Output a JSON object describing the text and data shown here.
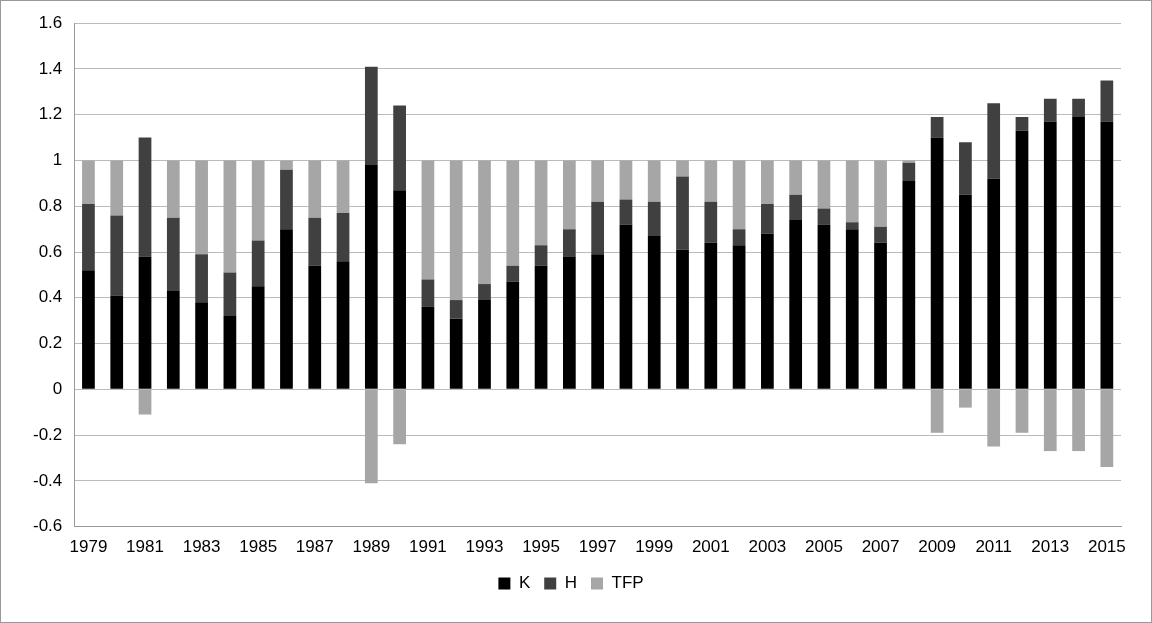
{
  "chart_data": {
    "type": "bar",
    "stacked": true,
    "categories": [
      "1979",
      null,
      "1981",
      null,
      "1983",
      null,
      "1985",
      null,
      "1987",
      null,
      "1989",
      null,
      "1991",
      null,
      "1993",
      null,
      "1995",
      null,
      "1997",
      null,
      "1999",
      null,
      "2001",
      null,
      "2003",
      null,
      "2005",
      null,
      "2007",
      null,
      "2009",
      null,
      "2011",
      null,
      "2013",
      null,
      "2015"
    ],
    "series": [
      {
        "name": "K",
        "color": "#000000",
        "values": [
          0.52,
          0.41,
          0.58,
          0.43,
          0.38,
          0.32,
          0.45,
          0.7,
          0.54,
          0.56,
          0.98,
          0.87,
          0.36,
          0.31,
          0.39,
          0.47,
          0.54,
          0.58,
          0.59,
          0.72,
          0.67,
          0.61,
          0.64,
          0.63,
          0.68,
          0.74,
          0.72,
          0.7,
          0.64,
          0.91,
          1.1,
          0.85,
          0.92,
          1.13,
          1.17,
          1.19,
          1.17
        ]
      },
      {
        "name": "H",
        "color": "#404040",
        "values": [
          0.29,
          0.35,
          0.52,
          0.32,
          0.21,
          0.19,
          0.2,
          0.26,
          0.21,
          0.21,
          0.43,
          0.37,
          0.12,
          0.08,
          0.07,
          0.07,
          0.09,
          0.12,
          0.23,
          0.11,
          0.15,
          0.32,
          0.18,
          0.07,
          0.13,
          0.11,
          0.07,
          0.03,
          0.07,
          0.08,
          0.09,
          0.23,
          0.33,
          0.06,
          0.1,
          0.08,
          0.18
        ]
      },
      {
        "name": "TFP",
        "color": "#a6a6a6",
        "values": [
          0.19,
          0.24,
          -0.11,
          0.25,
          0.41,
          0.49,
          0.35,
          0.04,
          0.25,
          0.23,
          -0.41,
          -0.24,
          0.52,
          0.61,
          0.54,
          0.46,
          0.37,
          0.3,
          0.18,
          0.17,
          0.18,
          0.07,
          0.18,
          0.3,
          0.19,
          0.15,
          0.21,
          0.27,
          0.29,
          0.01,
          -0.19,
          -0.08,
          -0.25,
          -0.19,
          -0.27,
          -0.27,
          -0.34
        ]
      }
    ],
    "ylim": [
      -0.6,
      1.6
    ],
    "yticks": [
      -0.6,
      -0.4,
      -0.2,
      0,
      0.2,
      0.4,
      0.6,
      0.8,
      1,
      1.2,
      1.4,
      1.6
    ],
    "grid": "y",
    "legend": "bottom"
  }
}
